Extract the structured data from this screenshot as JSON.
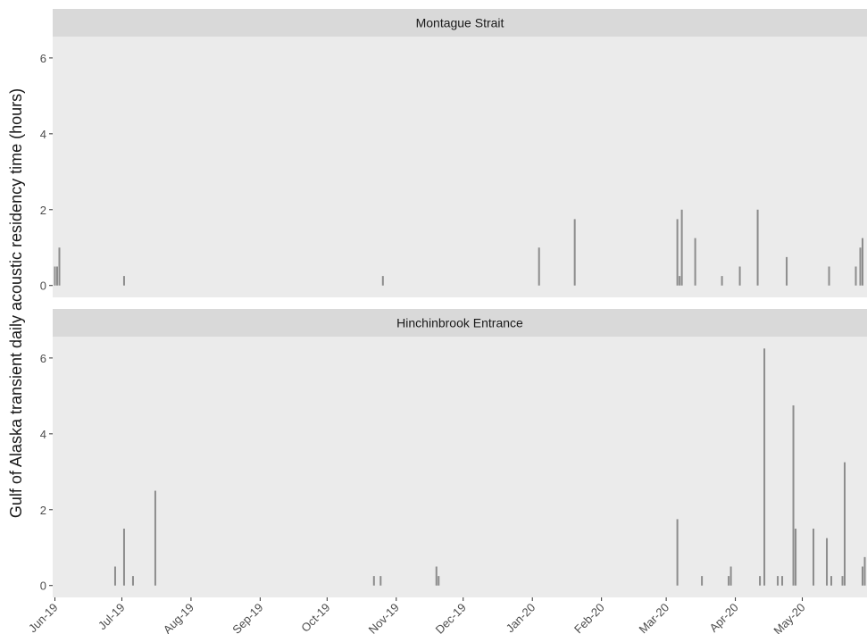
{
  "chart_data": [
    {
      "type": "bar",
      "title": "Montague Strait",
      "ylabel": "Gulf of Alaska transient daily acoustic residency time (hours)",
      "x": [
        0,
        1,
        2,
        31,
        147,
        217,
        233,
        279,
        280,
        281,
        287,
        299,
        307,
        315,
        328,
        347,
        359,
        361,
        362
      ],
      "values": [
        0.5,
        0.5,
        1.0,
        0.25,
        0.25,
        1.0,
        1.75,
        1.75,
        0.25,
        2.0,
        1.25,
        0.25,
        0.5,
        2.0,
        0.75,
        0.5,
        0.5,
        1.0,
        1.25
      ],
      "color": "#8c8c8c",
      "xlim": [
        -1,
        364
      ],
      "ylim": [
        -0.3125,
        6.5625
      ],
      "yticks": [
        0,
        2,
        4,
        6
      ]
    },
    {
      "type": "bar",
      "title": "Hinchinbrook Entrance",
      "x": [
        27,
        31,
        35,
        45,
        143,
        146,
        171,
        172,
        279,
        290,
        302,
        303,
        316,
        318,
        324,
        326,
        331,
        332,
        340,
        346,
        348,
        353,
        354,
        362,
        363
      ],
      "values": [
        0.5,
        1.5,
        0.25,
        2.5,
        0.25,
        0.25,
        0.5,
        0.25,
        1.75,
        0.25,
        0.25,
        0.5,
        0.25,
        6.25,
        0.25,
        0.25,
        4.75,
        1.5,
        1.5,
        1.25,
        0.25,
        0.25,
        3.25,
        0.5,
        0.75
      ],
      "color": "#8c8c8c",
      "xlim": [
        -1,
        364
      ],
      "ylim": [
        -0.3125,
        6.5625
      ],
      "yticks": [
        0,
        2,
        4,
        6
      ],
      "xticks": [
        {
          "value": 0,
          "label": "Jun-19"
        },
        {
          "value": 30,
          "label": "Jul-19"
        },
        {
          "value": 61,
          "label": "Aug-19"
        },
        {
          "value": 92,
          "label": "Sep-19"
        },
        {
          "value": 122,
          "label": "Oct-19"
        },
        {
          "value": 153,
          "label": "Nov-19"
        },
        {
          "value": 183,
          "label": "Dec-19"
        },
        {
          "value": 214,
          "label": "Jan-20"
        },
        {
          "value": 245,
          "label": "Feb-20"
        },
        {
          "value": 274,
          "label": "Mar-20"
        },
        {
          "value": 305,
          "label": "Apr-20"
        },
        {
          "value": 335,
          "label": "May-20"
        }
      ]
    }
  ]
}
